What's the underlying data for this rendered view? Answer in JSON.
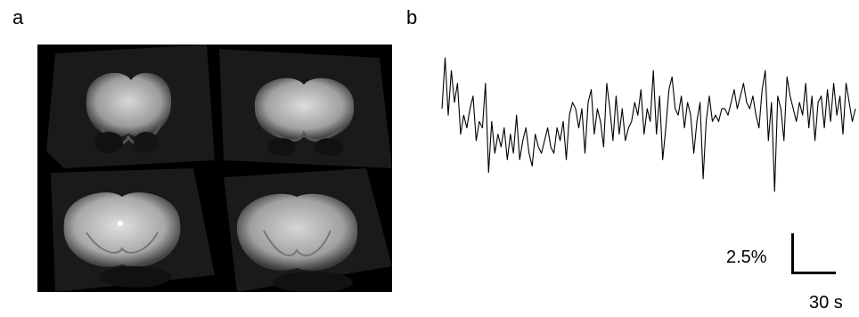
{
  "panels": {
    "a": {
      "label": "a"
    },
    "b": {
      "label": "b"
    }
  },
  "scale": {
    "amplitude_label": "2.5%",
    "time_label": "30 s"
  },
  "chart_data": {
    "type": "line",
    "title": "",
    "xlabel": "",
    "ylabel": "",
    "grid": false,
    "axes_visible": false,
    "series": [
      {
        "values": [
          0.2,
          1.0,
          0.1,
          0.8,
          0.3,
          0.6,
          -0.2,
          0.1,
          -0.1,
          0.2,
          0.4,
          -0.3,
          0.0,
          -0.1,
          0.6,
          -0.8,
          0.0,
          -0.5,
          -0.2,
          -0.4,
          -0.1,
          -0.6,
          -0.2,
          -0.5,
          0.1,
          -0.6,
          -0.3,
          -0.1,
          -0.5,
          -0.7,
          -0.2,
          -0.4,
          -0.5,
          -0.3,
          -0.1,
          -0.4,
          -0.5,
          -0.1,
          -0.3,
          0.0,
          -0.6,
          0.1,
          0.3,
          0.2,
          -0.1,
          0.2,
          -0.5,
          0.3,
          0.5,
          -0.2,
          0.2,
          0.0,
          -0.4,
          0.6,
          0.2,
          -0.3,
          0.4,
          -0.2,
          0.2,
          -0.3,
          -0.1,
          0.0,
          0.3,
          0.1,
          0.5,
          -0.2,
          0.2,
          0.0,
          0.8,
          -0.2,
          0.4,
          -0.6,
          -0.1,
          0.5,
          0.7,
          0.2,
          0.1,
          0.4,
          -0.1,
          0.3,
          0.1,
          -0.5,
          0.0,
          0.3,
          -0.9,
          0.0,
          0.4,
          0.0,
          0.1,
          0.0,
          0.2,
          0.2,
          0.1,
          0.3,
          0.5,
          0.2,
          0.4,
          0.6,
          0.3,
          0.2,
          0.4,
          0.1,
          -0.1,
          0.5,
          0.8,
          -0.3,
          0.3,
          -1.1,
          0.4,
          0.2,
          -0.3,
          0.7,
          0.4,
          0.2,
          0.0,
          0.3,
          0.1,
          0.6,
          -0.1,
          0.4,
          -0.3,
          0.3,
          0.4,
          -0.1,
          0.5,
          0.0,
          0.6,
          0.1,
          0.4,
          -0.2,
          0.6,
          0.3,
          0.0,
          0.2
        ]
      }
    ]
  }
}
